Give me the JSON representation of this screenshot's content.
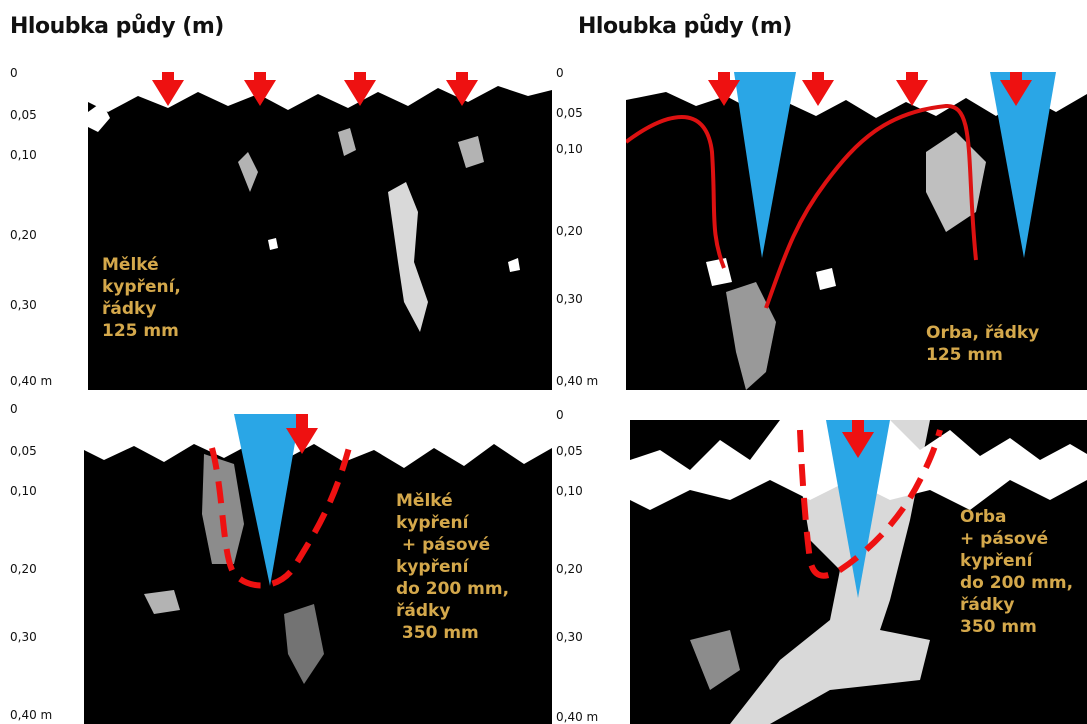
{
  "headings": {
    "left": "Hloubka půdy (m)",
    "right": "Hloubka půdy (m)"
  },
  "depth_ticks": [
    "0",
    "0,05",
    "0,10",
    "0,20",
    "0,30",
    "0,40 m"
  ],
  "panels": [
    {
      "label": "Mělké\nkypření,\nřádky\n125 mm"
    },
    {
      "label": "Orba, řádky\n125 mm"
    },
    {
      "label": "Mělké\nkypření\n + pásové\nkypření\ndo 200 mm,\nřádky\n 350 mm"
    },
    {
      "label": "Orba\n+ pásové\nkypření\ndo 200 mm,\nřádky\n350 mm"
    }
  ],
  "colors": {
    "arrow": "#ee1111",
    "wedge": "#2aa6e6",
    "label": "#d4a84b",
    "soil": "#000000"
  }
}
